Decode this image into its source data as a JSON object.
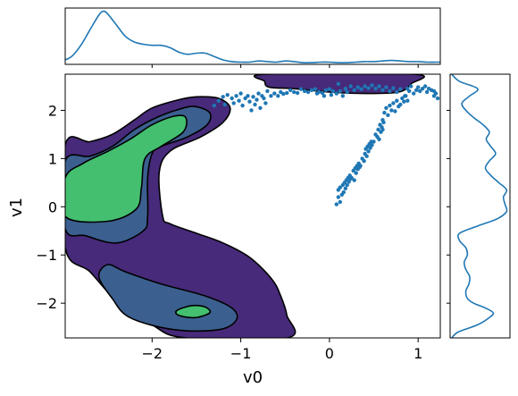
{
  "chart_data": {
    "type": "scatter",
    "subtype": "joint plot: filled KDE contours with scatter overlay and marginal density curves",
    "xlabel": "v0",
    "ylabel": "v1",
    "xlim": [
      -2.98,
      1.25
    ],
    "ylim": [
      -2.72,
      2.75
    ],
    "xticks": [
      -2,
      -1,
      0,
      1
    ],
    "xtick_labels": [
      "−2",
      "−1",
      "0",
      "1"
    ],
    "yticks": [
      -2,
      -1,
      0,
      1,
      2
    ],
    "ytick_labels": [
      "−2",
      "−1",
      "0",
      "1",
      "2"
    ],
    "grid": false,
    "legend": "none",
    "colors": {
      "level1": "#472a7a",
      "level2": "#3b5f8f",
      "level3": "#44bf70",
      "contour_line": "#000000",
      "scatter": "#1f77b4",
      "marginal_line": "#1f77b4"
    },
    "contour_levels": [
      {
        "level": 1,
        "color": "level1",
        "polygons": [
          [
            [
              -2.98,
              1.28
            ],
            [
              -2.7,
              1.35
            ],
            [
              -2.45,
              1.5
            ],
            [
              -2.2,
              1.8
            ],
            [
              -2.0,
              2.05
            ],
            [
              -1.7,
              2.22
            ],
            [
              -1.5,
              2.28
            ],
            [
              -1.25,
              2.25
            ],
            [
              -1.12,
              2.05
            ],
            [
              -1.2,
              1.75
            ],
            [
              -1.45,
              1.45
            ],
            [
              -1.8,
              1.15
            ],
            [
              -1.92,
              0.7
            ],
            [
              -1.88,
              -0.2
            ],
            [
              -1.8,
              -0.35
            ],
            [
              -1.5,
              -0.55
            ],
            [
              -1.2,
              -0.75
            ],
            [
              -0.9,
              -1.05
            ],
            [
              -0.65,
              -1.5
            ],
            [
              -0.55,
              -1.85
            ],
            [
              -0.48,
              -2.25
            ],
            [
              -0.47,
              -2.72
            ],
            [
              -1.62,
              -2.72
            ],
            [
              -2.0,
              -2.45
            ],
            [
              -2.4,
              -1.95
            ],
            [
              -2.7,
              -1.35
            ],
            [
              -2.98,
              -0.85
            ]
          ],
          [
            [
              -0.72,
              2.75
            ],
            [
              0.95,
              2.75
            ],
            [
              0.92,
              2.55
            ],
            [
              0.78,
              2.38
            ],
            [
              0.4,
              2.35
            ],
            [
              0.0,
              2.38
            ],
            [
              -0.4,
              2.45
            ],
            [
              -0.68,
              2.48
            ],
            [
              -0.73,
              2.6
            ]
          ]
        ]
      },
      {
        "level": 2,
        "color": "level2",
        "polygons": [
          [
            [
              -2.98,
              0.95
            ],
            [
              -2.7,
              1.05
            ],
            [
              -2.45,
              1.25
            ],
            [
              -2.2,
              1.6
            ],
            [
              -1.95,
              1.85
            ],
            [
              -1.7,
              2.02
            ],
            [
              -1.52,
              2.08
            ],
            [
              -1.35,
              1.95
            ],
            [
              -1.38,
              1.7
            ],
            [
              -1.6,
              1.45
            ],
            [
              -1.9,
              1.25
            ],
            [
              -2.0,
              1.1
            ],
            [
              -2.05,
              0.6
            ],
            [
              -2.05,
              -0.2
            ],
            [
              -2.1,
              -0.5
            ],
            [
              -2.4,
              -0.75
            ],
            [
              -2.75,
              -0.6
            ],
            [
              -2.98,
              -0.45
            ]
          ],
          [
            [
              -2.5,
              -1.2
            ],
            [
              -2.3,
              -1.35
            ],
            [
              -1.9,
              -1.6
            ],
            [
              -1.4,
              -1.85
            ],
            [
              -1.1,
              -2.1
            ],
            [
              -1.05,
              -2.35
            ],
            [
              -1.25,
              -2.55
            ],
            [
              -1.75,
              -2.55
            ],
            [
              -2.25,
              -2.3
            ],
            [
              -2.45,
              -1.9
            ],
            [
              -2.6,
              -1.45
            ]
          ]
        ]
      },
      {
        "level": 3,
        "color": "level3",
        "polygons": [
          [
            [
              -2.98,
              0.6
            ],
            [
              -2.78,
              0.9
            ],
            [
              -2.5,
              1.15
            ],
            [
              -2.25,
              1.4
            ],
            [
              -2.0,
              1.7
            ],
            [
              -1.75,
              1.88
            ],
            [
              -1.62,
              1.85
            ],
            [
              -1.65,
              1.55
            ],
            [
              -1.9,
              1.25
            ],
            [
              -2.08,
              1.0
            ],
            [
              -2.12,
              0.4
            ],
            [
              -2.18,
              -0.05
            ],
            [
              -2.5,
              -0.3
            ],
            [
              -2.98,
              -0.2
            ]
          ],
          [
            [
              -1.72,
              -2.15
            ],
            [
              -1.55,
              -2.05
            ],
            [
              -1.4,
              -2.08
            ],
            [
              -1.35,
              -2.2
            ],
            [
              -1.52,
              -2.3
            ],
            [
              -1.7,
              -2.25
            ]
          ]
        ]
      }
    ],
    "points": [
      [
        -1.3,
        2.1
      ],
      [
        -1.25,
        2.2
      ],
      [
        -1.2,
        2.28
      ],
      [
        -1.18,
        2.12
      ],
      [
        -1.15,
        2.32
      ],
      [
        -1.1,
        2.25
      ],
      [
        -1.08,
        2.15
      ],
      [
        -1.05,
        2.3
      ],
      [
        -1.02,
        2.2
      ],
      [
        -1.0,
        2.35
      ],
      [
        -0.98,
        2.1
      ],
      [
        -0.95,
        2.25
      ],
      [
        -0.92,
        2.3
      ],
      [
        -0.9,
        2.18
      ],
      [
        -0.88,
        2.0
      ],
      [
        -0.86,
        2.28
      ],
      [
        -0.84,
        2.12
      ],
      [
        -0.82,
        2.22
      ],
      [
        -0.8,
        2.35
      ],
      [
        -0.78,
        2.05
      ],
      [
        -0.76,
        2.3
      ],
      [
        -0.74,
        2.25
      ],
      [
        -0.72,
        2.15
      ],
      [
        -0.7,
        2.4
      ],
      [
        -0.66,
        2.3
      ],
      [
        -0.62,
        2.35
      ],
      [
        -0.58,
        2.3
      ],
      [
        -0.55,
        2.38
      ],
      [
        -0.52,
        2.34
      ],
      [
        -0.48,
        2.36
      ],
      [
        -0.44,
        2.42
      ],
      [
        -0.4,
        2.38
      ],
      [
        -0.36,
        2.36
      ],
      [
        -0.32,
        2.44
      ],
      [
        -0.28,
        2.4
      ],
      [
        -0.24,
        2.38
      ],
      [
        -0.2,
        2.42
      ],
      [
        -0.16,
        2.44
      ],
      [
        -0.12,
        2.38
      ],
      [
        -0.08,
        2.36
      ],
      [
        -0.04,
        2.42
      ],
      [
        0.0,
        2.44
      ],
      [
        0.04,
        2.4
      ],
      [
        0.08,
        2.35
      ],
      [
        0.02,
        2.32
      ],
      [
        -0.06,
        2.3
      ],
      [
        -0.14,
        2.35
      ],
      [
        0.1,
        2.55
      ],
      [
        0.12,
        2.4
      ],
      [
        0.15,
        2.3
      ],
      [
        0.18,
        2.45
      ],
      [
        0.2,
        2.38
      ],
      [
        0.24,
        2.5
      ],
      [
        0.28,
        2.42
      ],
      [
        0.32,
        2.48
      ],
      [
        0.36,
        2.44
      ],
      [
        0.4,
        2.5
      ],
      [
        0.44,
        2.46
      ],
      [
        0.48,
        2.52
      ],
      [
        0.52,
        2.45
      ],
      [
        0.56,
        2.5
      ],
      [
        0.6,
        2.42
      ],
      [
        0.64,
        2.48
      ],
      [
        0.68,
        2.4
      ],
      [
        0.72,
        2.46
      ],
      [
        0.76,
        2.38
      ],
      [
        0.8,
        2.44
      ],
      [
        0.85,
        2.3
      ],
      [
        0.88,
        2.45
      ],
      [
        0.9,
        2.4
      ],
      [
        0.92,
        2.5
      ],
      [
        0.95,
        2.35
      ],
      [
        0.98,
        2.42
      ],
      [
        1.0,
        2.48
      ],
      [
        1.02,
        2.4
      ],
      [
        1.05,
        2.45
      ],
      [
        1.08,
        2.5
      ],
      [
        1.1,
        2.38
      ],
      [
        1.12,
        2.45
      ],
      [
        1.15,
        2.42
      ],
      [
        1.18,
        2.4
      ],
      [
        1.2,
        2.35
      ],
      [
        1.22,
        2.25
      ],
      [
        1.18,
        2.3
      ],
      [
        0.6,
        1.8
      ],
      [
        0.62,
        1.95
      ],
      [
        0.64,
        2.05
      ],
      [
        0.66,
        1.9
      ],
      [
        0.68,
        2.1
      ],
      [
        0.7,
        2.0
      ],
      [
        0.72,
        2.15
      ],
      [
        0.74,
        1.98
      ],
      [
        0.76,
        2.2
      ],
      [
        0.78,
        2.08
      ],
      [
        0.8,
        2.12
      ],
      [
        0.82,
        2.25
      ],
      [
        0.84,
        2.18
      ],
      [
        0.86,
        2.3
      ],
      [
        0.88,
        2.2
      ],
      [
        0.5,
        1.35
      ],
      [
        0.52,
        1.5
      ],
      [
        0.54,
        1.45
      ],
      [
        0.55,
        1.6
      ],
      [
        0.56,
        1.4
      ],
      [
        0.57,
        1.7
      ],
      [
        0.58,
        1.55
      ],
      [
        0.59,
        1.65
      ],
      [
        0.6,
        1.6
      ],
      [
        0.61,
        1.75
      ],
      [
        0.35,
        0.85
      ],
      [
        0.37,
        1.0
      ],
      [
        0.39,
        0.95
      ],
      [
        0.4,
        1.1
      ],
      [
        0.41,
        1.2
      ],
      [
        0.42,
        1.05
      ],
      [
        0.43,
        1.25
      ],
      [
        0.44,
        1.15
      ],
      [
        0.45,
        1.3
      ],
      [
        0.46,
        1.22
      ],
      [
        0.47,
        1.35
      ],
      [
        0.48,
        1.28
      ],
      [
        0.25,
        0.6
      ],
      [
        0.27,
        0.75
      ],
      [
        0.28,
        0.55
      ],
      [
        0.29,
        0.8
      ],
      [
        0.3,
        0.7
      ],
      [
        0.31,
        0.85
      ],
      [
        0.32,
        0.78
      ],
      [
        0.33,
        0.9
      ],
      [
        0.34,
        0.82
      ],
      [
        0.08,
        0.05
      ],
      [
        0.1,
        0.2
      ],
      [
        0.1,
        0.35
      ],
      [
        0.12,
        0.1
      ],
      [
        0.12,
        0.4
      ],
      [
        0.14,
        0.25
      ],
      [
        0.15,
        0.45
      ],
      [
        0.16,
        0.3
      ],
      [
        0.17,
        0.5
      ],
      [
        0.18,
        0.38
      ],
      [
        0.19,
        0.55
      ],
      [
        0.2,
        0.45
      ],
      [
        0.21,
        0.6
      ],
      [
        0.22,
        0.52
      ],
      [
        0.23,
        0.65
      ],
      [
        0.24,
        0.58
      ]
    ],
    "marginal_x": {
      "x": [
        -2.98,
        -2.9,
        -2.8,
        -2.7,
        -2.6,
        -2.55,
        -2.5,
        -2.4,
        -2.3,
        -2.2,
        -2.1,
        -2.0,
        -1.9,
        -1.8,
        -1.7,
        -1.6,
        -1.5,
        -1.4,
        -1.3,
        -1.2,
        -1.1,
        -1.0,
        -0.9,
        -0.8,
        -0.7,
        -0.6,
        -0.5,
        -0.4,
        -0.3,
        -0.2,
        -0.1,
        0.0,
        0.1,
        0.2,
        0.3,
        0.4,
        0.5,
        0.6,
        0.7,
        0.8,
        0.9,
        1.0,
        1.1,
        1.2,
        1.25
      ],
      "density": [
        0.08,
        0.15,
        0.35,
        0.62,
        0.88,
        0.95,
        0.9,
        0.7,
        0.5,
        0.4,
        0.36,
        0.34,
        0.34,
        0.3,
        0.22,
        0.18,
        0.2,
        0.2,
        0.14,
        0.08,
        0.05,
        0.04,
        0.04,
        0.06,
        0.05,
        0.04,
        0.06,
        0.05,
        0.03,
        0.03,
        0.04,
        0.04,
        0.03,
        0.03,
        0.04,
        0.05,
        0.05,
        0.06,
        0.07,
        0.06,
        0.05,
        0.05,
        0.04,
        0.04,
        0.04
      ]
    },
    "marginal_y": {
      "y": [
        -2.72,
        -2.6,
        -2.45,
        -2.3,
        -2.2,
        -2.1,
        -2.0,
        -1.9,
        -1.75,
        -1.6,
        -1.45,
        -1.3,
        -1.15,
        -1.0,
        -0.85,
        -0.7,
        -0.55,
        -0.4,
        -0.25,
        -0.1,
        0.05,
        0.2,
        0.35,
        0.5,
        0.65,
        0.8,
        0.95,
        1.1,
        1.25,
        1.4,
        1.55,
        1.7,
        1.85,
        2.0,
        2.15,
        2.3,
        2.45,
        2.6,
        2.75
      ],
      "density": [
        0.02,
        0.1,
        0.35,
        0.5,
        0.55,
        0.45,
        0.3,
        0.22,
        0.2,
        0.24,
        0.25,
        0.2,
        0.18,
        0.22,
        0.2,
        0.12,
        0.12,
        0.35,
        0.6,
        0.72,
        0.7,
        0.68,
        0.72,
        0.62,
        0.52,
        0.45,
        0.5,
        0.58,
        0.52,
        0.46,
        0.5,
        0.42,
        0.3,
        0.2,
        0.15,
        0.25,
        0.35,
        0.12,
        0.02
      ]
    }
  }
}
